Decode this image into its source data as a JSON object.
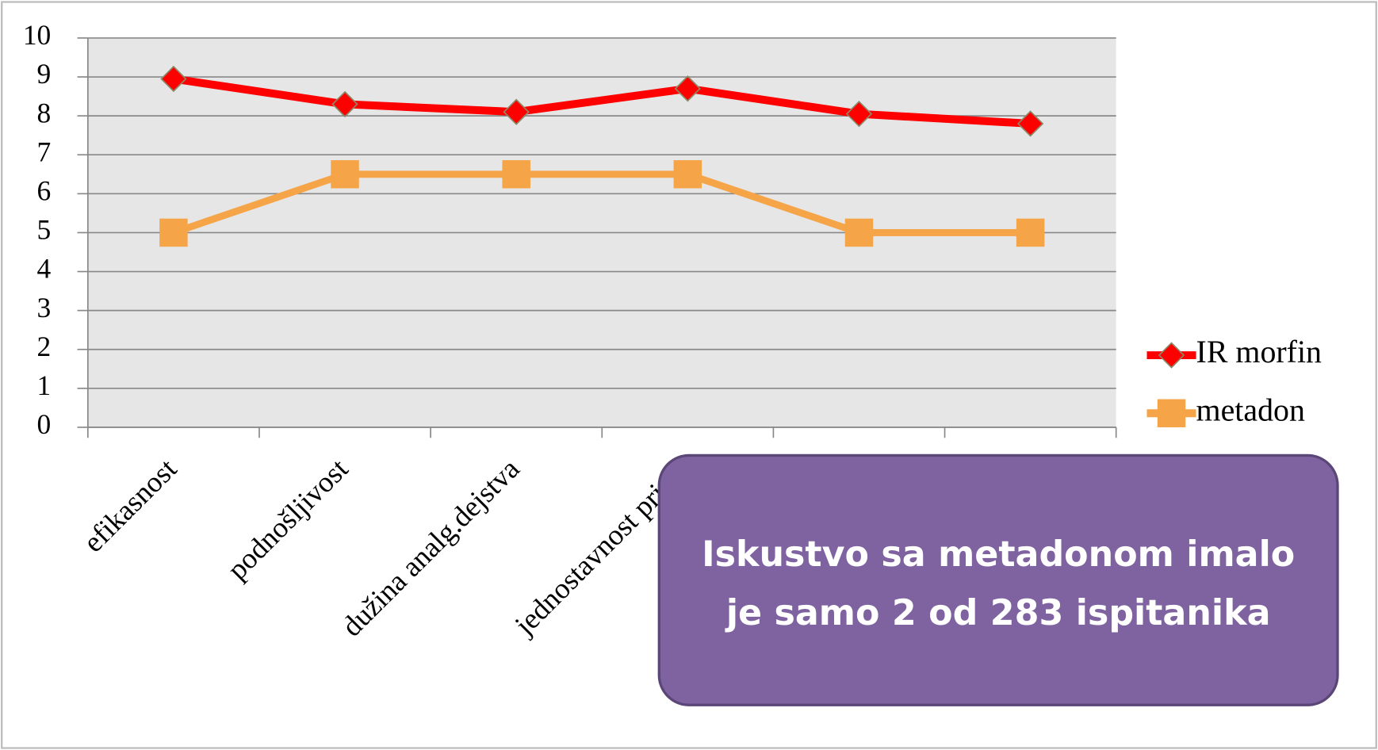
{
  "chart_data": {
    "type": "line",
    "categories": [
      "efikasnost",
      "podnošljivost",
      "dužina analg.dejstva",
      "jednostavnost prime",
      null,
      null
    ],
    "series": [
      {
        "name": "IR morfin",
        "color": "#ff0000",
        "values": [
          8.95,
          8.3,
          8.1,
          8.7,
          8.05,
          7.8
        ]
      },
      {
        "name": "metadon",
        "color": "#f5a448",
        "values": [
          5,
          6.5,
          6.5,
          6.5,
          5,
          5
        ]
      }
    ],
    "ylim": [
      0,
      10
    ],
    "yticks": [
      0,
      1,
      2,
      3,
      4,
      5,
      6,
      7,
      8,
      9,
      10
    ],
    "grid": true,
    "legend": "right",
    "annotation": [
      "Iskustvo sa metadonom imalo",
      "je samo 2 od 283 ispitanika"
    ]
  }
}
